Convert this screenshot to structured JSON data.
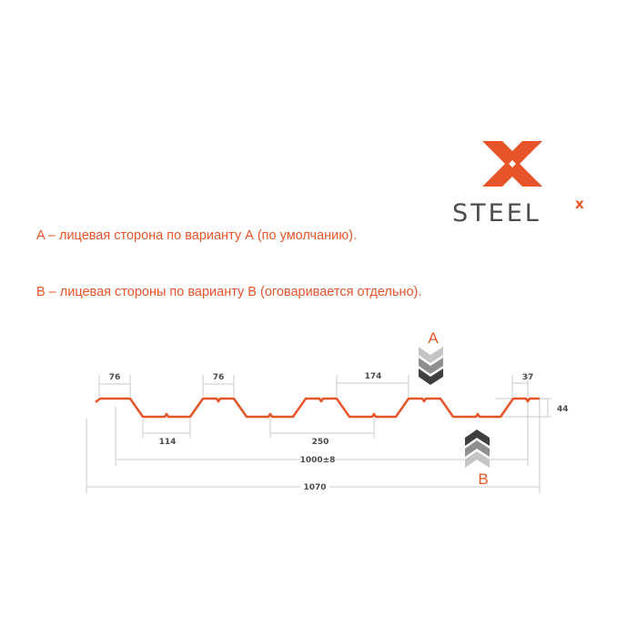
{
  "logo": {
    "brand": "STEEL",
    "superscript": "x"
  },
  "notes": [
    "A – лицевая сторона по варианту А (по умолчанию).",
    "В – лицевая стороны по варианту В (оговаривается отдельно)."
  ],
  "dimensions": {
    "top_flange_1": "76",
    "top_flange_2": "76",
    "top_span": "174",
    "edge": "37",
    "height": "44",
    "bottom_flange": "114",
    "bottom_span": "250",
    "working_width": "1000±8",
    "total_width": "1070"
  },
  "side_labels": {
    "a": "A",
    "b": "B"
  },
  "colors": {
    "accent": "#e8542a",
    "text_dark": "#4a4a4f",
    "dim_line": "#c8c8c8"
  }
}
